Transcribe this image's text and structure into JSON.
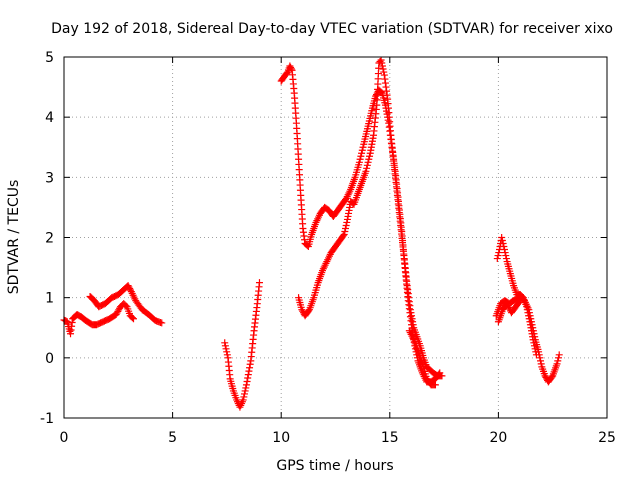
{
  "chart_data": {
    "type": "scatter",
    "title": "Day 192 of 2018, Sidereal Day-to-day VTEC variation (SDTVAR) for receiver xixo",
    "xlabel": "GPS time / hours",
    "ylabel": "SDTVAR / TECUs",
    "xlim": [
      0,
      25
    ],
    "ylim": [
      -1,
      5
    ],
    "xticks": [
      0,
      5,
      10,
      15,
      20,
      25
    ],
    "yticks": [
      -1,
      0,
      1,
      2,
      3,
      4,
      5
    ],
    "grid": true,
    "marker": "+",
    "color": "#ff0000",
    "series": [
      {
        "name": "SDTVAR",
        "segments": [
          [
            [
              0,
              0.63
            ],
            [
              0.15,
              0.6
            ],
            [
              0.3,
              0.4
            ],
            [
              0.4,
              0.65
            ],
            [
              0.6,
              0.72
            ],
            [
              0.8,
              0.68
            ],
            [
              1.0,
              0.62
            ],
            [
              1.3,
              0.55
            ],
            [
              1.5,
              0.55
            ],
            [
              1.8,
              0.6
            ],
            [
              2.1,
              0.65
            ],
            [
              2.4,
              0.72
            ],
            [
              2.6,
              0.85
            ],
            [
              2.75,
              0.9
            ],
            [
              2.9,
              0.85
            ],
            [
              3.05,
              0.7
            ],
            [
              3.2,
              0.65
            ]
          ],
          [
            [
              1.2,
              1.02
            ],
            [
              1.4,
              0.95
            ],
            [
              1.6,
              0.85
            ],
            [
              1.9,
              0.9
            ],
            [
              2.2,
              1.0
            ],
            [
              2.5,
              1.05
            ],
            [
              2.8,
              1.15
            ],
            [
              2.95,
              1.2
            ],
            [
              3.1,
              1.1
            ],
            [
              3.3,
              0.95
            ],
            [
              3.6,
              0.8
            ],
            [
              3.9,
              0.72
            ],
            [
              4.2,
              0.62
            ],
            [
              4.5,
              0.58
            ]
          ],
          [
            [
              7.4,
              0.25
            ],
            [
              7.55,
              0.0
            ],
            [
              7.65,
              -0.35
            ],
            [
              7.8,
              -0.55
            ],
            [
              7.95,
              -0.7
            ],
            [
              8.1,
              -0.82
            ],
            [
              8.25,
              -0.7
            ],
            [
              8.4,
              -0.45
            ],
            [
              8.6,
              -0.05
            ],
            [
              8.75,
              0.45
            ],
            [
              8.9,
              0.9
            ],
            [
              9.0,
              1.25
            ]
          ],
          [
            [
              10.0,
              4.6
            ],
            [
              10.15,
              4.68
            ],
            [
              10.3,
              4.75
            ],
            [
              10.4,
              4.85
            ],
            [
              10.5,
              4.78
            ],
            [
              10.6,
              4.4
            ],
            [
              10.7,
              3.9
            ],
            [
              10.8,
              3.3
            ],
            [
              10.9,
              2.7
            ],
            [
              11.0,
              2.15
            ],
            [
              11.1,
              1.9
            ],
            [
              11.25,
              1.85
            ],
            [
              11.4,
              2.05
            ],
            [
              11.6,
              2.25
            ],
            [
              11.8,
              2.4
            ],
            [
              12.0,
              2.5
            ],
            [
              12.2,
              2.45
            ],
            [
              12.4,
              2.35
            ],
            [
              12.6,
              2.45
            ],
            [
              12.8,
              2.55
            ],
            [
              13.0,
              2.65
            ],
            [
              13.2,
              2.8
            ],
            [
              13.4,
              3.0
            ],
            [
              13.6,
              3.25
            ],
            [
              13.8,
              3.55
            ],
            [
              14.0,
              3.85
            ],
            [
              14.2,
              4.15
            ],
            [
              14.35,
              4.35
            ],
            [
              14.5,
              4.45
            ],
            [
              14.65,
              4.4
            ],
            [
              14.8,
              4.2
            ],
            [
              14.95,
              3.9
            ],
            [
              15.1,
              3.5
            ],
            [
              15.25,
              3.1
            ],
            [
              15.4,
              2.6
            ],
            [
              15.55,
              2.1
            ],
            [
              15.7,
              1.5
            ],
            [
              15.85,
              0.95
            ],
            [
              16.0,
              0.55
            ],
            [
              16.15,
              0.2
            ],
            [
              16.3,
              -0.05
            ],
            [
              16.5,
              -0.25
            ],
            [
              16.7,
              -0.4
            ],
            [
              16.9,
              -0.4
            ],
            [
              17.1,
              -0.35
            ],
            [
              17.3,
              -0.25
            ]
          ],
          [
            [
              10.8,
              1.0
            ],
            [
              10.95,
              0.8
            ],
            [
              11.1,
              0.7
            ],
            [
              11.3,
              0.8
            ],
            [
              11.5,
              1.0
            ],
            [
              11.7,
              1.25
            ],
            [
              11.9,
              1.45
            ],
            [
              12.1,
              1.6
            ],
            [
              12.3,
              1.75
            ],
            [
              12.5,
              1.85
            ],
            [
              12.7,
              1.95
            ],
            [
              12.9,
              2.05
            ],
            [
              13.05,
              2.3
            ],
            [
              13.2,
              2.6
            ],
            [
              13.35,
              2.55
            ],
            [
              13.5,
              2.7
            ],
            [
              13.7,
              2.9
            ],
            [
              13.9,
              3.1
            ],
            [
              14.1,
              3.4
            ],
            [
              14.25,
              3.7
            ],
            [
              14.4,
              4.2
            ],
            [
              14.5,
              4.9
            ],
            [
              14.6,
              4.95
            ],
            [
              14.75,
              4.7
            ],
            [
              14.9,
              4.3
            ],
            [
              15.05,
              3.7
            ],
            [
              15.2,
              3.2
            ],
            [
              15.35,
              2.7
            ],
            [
              15.5,
              2.2
            ],
            [
              15.65,
              1.7
            ],
            [
              15.8,
              1.2
            ],
            [
              15.95,
              0.8
            ],
            [
              16.1,
              0.5
            ],
            [
              16.25,
              0.35
            ],
            [
              16.4,
              0.2
            ],
            [
              16.55,
              0.0
            ],
            [
              16.7,
              -0.15
            ],
            [
              16.85,
              -0.2
            ],
            [
              17.0,
              -0.25
            ],
            [
              17.2,
              -0.3
            ],
            [
              17.4,
              -0.3
            ]
          ],
          [
            [
              15.9,
              0.45
            ],
            [
              16.1,
              0.3
            ],
            [
              16.3,
              0.1
            ],
            [
              16.5,
              -0.1
            ],
            [
              16.7,
              -0.35
            ],
            [
              16.9,
              -0.45
            ],
            [
              17.1,
              -0.45
            ]
          ],
          [
            [
              19.9,
              0.7
            ],
            [
              20.0,
              0.8
            ],
            [
              20.1,
              0.9
            ],
            [
              20.3,
              0.95
            ],
            [
              20.5,
              0.9
            ],
            [
              20.7,
              0.95
            ],
            [
              20.9,
              1.0
            ],
            [
              21.0,
              1.05
            ],
            [
              21.2,
              0.95
            ],
            [
              21.4,
              0.8
            ],
            [
              21.55,
              0.55
            ],
            [
              21.7,
              0.3
            ],
            [
              21.85,
              0.1
            ],
            [
              22.0,
              -0.15
            ],
            [
              22.15,
              -0.3
            ],
            [
              22.3,
              -0.4
            ],
            [
              22.5,
              -0.3
            ],
            [
              22.7,
              -0.1
            ],
            [
              22.8,
              0.05
            ]
          ],
          [
            [
              19.95,
              1.65
            ],
            [
              20.05,
              1.8
            ],
            [
              20.15,
              2.0
            ],
            [
              20.25,
              1.85
            ],
            [
              20.4,
              1.6
            ],
            [
              20.55,
              1.4
            ],
            [
              20.7,
              1.2
            ],
            [
              20.85,
              1.05
            ],
            [
              21.0,
              1.05
            ],
            [
              21.15,
              1.0
            ],
            [
              21.3,
              0.85
            ],
            [
              21.45,
              0.6
            ],
            [
              21.6,
              0.3
            ],
            [
              21.75,
              0.05
            ]
          ],
          [
            [
              20.0,
              0.6
            ],
            [
              20.2,
              0.8
            ],
            [
              20.4,
              0.9
            ],
            [
              20.6,
              0.75
            ],
            [
              20.8,
              0.85
            ],
            [
              21.0,
              0.95
            ]
          ]
        ]
      }
    ]
  }
}
